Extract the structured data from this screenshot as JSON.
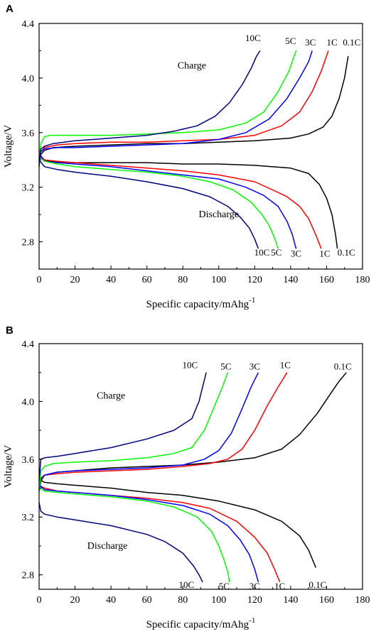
{
  "chart_data": [
    {
      "type": "line",
      "panel_label": "A",
      "xlabel": "Specific capacity/mAhg",
      "xlabel_superscript": "-1",
      "ylabel": "Voltage/V",
      "xlim": [
        0,
        180
      ],
      "ylim": [
        2.6,
        4.4
      ],
      "xticks": [
        0,
        20,
        40,
        60,
        80,
        100,
        120,
        140,
        160,
        180
      ],
      "yticks": [
        2.8,
        3.2,
        3.6,
        4.0,
        4.4
      ],
      "ytick_labels": [
        "2.8",
        "3.2",
        "3.6",
        "4.0",
        "4.4"
      ],
      "grid": false,
      "text_labels": [
        {
          "text": "Charge",
          "x": 85,
          "y": 4.07
        },
        {
          "text": "Discharge",
          "x": 100,
          "y": 2.98
        },
        {
          "text": "10C",
          "x": 119,
          "y": 4.27
        },
        {
          "text": "5C",
          "x": 140,
          "y": 4.25
        },
        {
          "text": "3C",
          "x": 151,
          "y": 4.24
        },
        {
          "text": "1C",
          "x": 163,
          "y": 4.24
        },
        {
          "text": "0.1C",
          "x": 174,
          "y": 4.24
        },
        {
          "text": "10C",
          "x": 124,
          "y": 2.7
        },
        {
          "text": "5C",
          "x": 132,
          "y": 2.7
        },
        {
          "text": "3C",
          "x": 143,
          "y": 2.69
        },
        {
          "text": "1C",
          "x": 159,
          "y": 2.69
        },
        {
          "text": "0.1C",
          "x": 171,
          "y": 2.7
        }
      ],
      "series": [
        {
          "name": "0.1C",
          "color": "#000000",
          "segments": [
            {
              "x": [
                0,
                1,
                3,
                8,
                20,
                40,
                60,
                80,
                100,
                120,
                140,
                150,
                158,
                163,
                167,
                170,
                172
              ],
              "y": [
                3.4,
                3.44,
                3.47,
                3.49,
                3.5,
                3.51,
                3.52,
                3.52,
                3.53,
                3.54,
                3.56,
                3.59,
                3.64,
                3.72,
                3.85,
                4.0,
                4.16
              ]
            },
            {
              "x": [
                0,
                2,
                5,
                20,
                40,
                60,
                80,
                100,
                120,
                140,
                150,
                156,
                160,
                163,
                165,
                166
              ],
              "y": [
                3.46,
                3.4,
                3.39,
                3.38,
                3.38,
                3.38,
                3.37,
                3.37,
                3.36,
                3.34,
                3.3,
                3.22,
                3.12,
                3.0,
                2.85,
                2.75
              ]
            }
          ]
        },
        {
          "name": "1C",
          "color": "#ff0000",
          "segments": [
            {
              "x": [
                0,
                1,
                3,
                10,
                20,
                40,
                60,
                80,
                100,
                120,
                135,
                145,
                152,
                157,
                161
              ],
              "y": [
                3.4,
                3.46,
                3.49,
                3.51,
                3.52,
                3.53,
                3.53,
                3.54,
                3.55,
                3.58,
                3.65,
                3.75,
                3.9,
                4.05,
                4.2
              ]
            },
            {
              "x": [
                0,
                3,
                10,
                20,
                40,
                60,
                80,
                100,
                120,
                130,
                138,
                145,
                150,
                154,
                157
              ],
              "y": [
                3.44,
                3.4,
                3.39,
                3.38,
                3.36,
                3.34,
                3.32,
                3.29,
                3.24,
                3.18,
                3.13,
                3.06,
                2.97,
                2.85,
                2.75
              ]
            }
          ]
        },
        {
          "name": "3C",
          "color": "#0000ff",
          "segments": [
            {
              "x": [
                0,
                1,
                3,
                10,
                20,
                40,
                60,
                80,
                100,
                115,
                128,
                138,
                145,
                150,
                152
              ],
              "y": [
                3.4,
                3.46,
                3.48,
                3.49,
                3.49,
                3.5,
                3.51,
                3.52,
                3.55,
                3.6,
                3.7,
                3.85,
                4.0,
                4.12,
                4.2
              ]
            },
            {
              "x": [
                0,
                3,
                10,
                20,
                40,
                60,
                80,
                100,
                115,
                125,
                133,
                138,
                141,
                143
              ],
              "y": [
                3.44,
                3.39,
                3.38,
                3.37,
                3.35,
                3.32,
                3.29,
                3.26,
                3.2,
                3.14,
                3.06,
                2.95,
                2.85,
                2.75
              ]
            }
          ]
        },
        {
          "name": "5C",
          "color": "#00ff00",
          "segments": [
            {
              "x": [
                0,
                1,
                3,
                6,
                10,
                20,
                40,
                60,
                80,
                100,
                115,
                125,
                133,
                139,
                143
              ],
              "y": [
                3.4,
                3.52,
                3.57,
                3.58,
                3.58,
                3.58,
                3.58,
                3.59,
                3.6,
                3.62,
                3.67,
                3.75,
                3.9,
                4.05,
                4.2
              ]
            },
            {
              "x": [
                0,
                3,
                10,
                20,
                40,
                60,
                80,
                95,
                108,
                118,
                124,
                128,
                131,
                133
              ],
              "y": [
                3.42,
                3.39,
                3.37,
                3.35,
                3.33,
                3.31,
                3.28,
                3.24,
                3.18,
                3.09,
                3.0,
                2.92,
                2.83,
                2.75
              ]
            }
          ]
        },
        {
          "name": "10C",
          "color": "#000080",
          "segments": [
            {
              "x": [
                0,
                1,
                3,
                8,
                20,
                40,
                60,
                75,
                88,
                98,
                106,
                113,
                118,
                121,
                123
              ],
              "y": [
                3.35,
                3.48,
                3.5,
                3.52,
                3.54,
                3.56,
                3.58,
                3.61,
                3.65,
                3.72,
                3.82,
                3.95,
                4.07,
                4.16,
                4.2
              ]
            },
            {
              "x": [
                0,
                3,
                10,
                20,
                40,
                60,
                80,
                95,
                105,
                112,
                117,
                120,
                122
              ],
              "y": [
                3.4,
                3.35,
                3.33,
                3.31,
                3.28,
                3.24,
                3.19,
                3.13,
                3.06,
                2.98,
                2.9,
                2.82,
                2.75
              ]
            }
          ]
        }
      ]
    },
    {
      "type": "line",
      "panel_label": "B",
      "xlabel": "Specific capacity/mAhg",
      "xlabel_superscript": "-1",
      "ylabel": "Voltage/V",
      "xlim": [
        0,
        180
      ],
      "ylim": [
        2.7,
        4.4
      ],
      "xticks": [
        0,
        20,
        40,
        60,
        80,
        100,
        120,
        140,
        160,
        180
      ],
      "yticks": [
        2.8,
        3.2,
        3.6,
        4.0,
        4.4
      ],
      "ytick_labels": [
        "2.8",
        "3.2",
        "3.6",
        "4.0",
        "4.4"
      ],
      "grid": false,
      "text_labels": [
        {
          "text": "Charge",
          "x": 40,
          "y": 4.02
        },
        {
          "text": "Discharge",
          "x": 38,
          "y": 2.98
        },
        {
          "text": "10C",
          "x": 84,
          "y": 4.23
        },
        {
          "text": "5C",
          "x": 104,
          "y": 4.22
        },
        {
          "text": "3C",
          "x": 120,
          "y": 4.22
        },
        {
          "text": "1C",
          "x": 137,
          "y": 4.23
        },
        {
          "text": "0.1C",
          "x": 169,
          "y": 4.22
        },
        {
          "text": "10C",
          "x": 82,
          "y": 2.71
        },
        {
          "text": "5C",
          "x": 103,
          "y": 2.7
        },
        {
          "text": "3C",
          "x": 120,
          "y": 2.7
        },
        {
          "text": "1C",
          "x": 134,
          "y": 2.7
        },
        {
          "text": "0.1C",
          "x": 155,
          "y": 2.71
        }
      ],
      "series": [
        {
          "name": "0.1C",
          "color": "#000000",
          "segments": [
            {
              "x": [
                0,
                1,
                3,
                10,
                20,
                40,
                60,
                80,
                100,
                120,
                135,
                145,
                155,
                162,
                167,
                171
              ],
              "y": [
                3.38,
                3.45,
                3.49,
                3.51,
                3.52,
                3.54,
                3.55,
                3.56,
                3.58,
                3.61,
                3.67,
                3.77,
                3.92,
                4.05,
                4.14,
                4.2
              ]
            },
            {
              "x": [
                0,
                3,
                10,
                20,
                40,
                60,
                80,
                100,
                120,
                135,
                145,
                150,
                154
              ],
              "y": [
                3.46,
                3.44,
                3.43,
                3.42,
                3.4,
                3.37,
                3.35,
                3.31,
                3.25,
                3.17,
                3.07,
                2.97,
                2.85
              ]
            }
          ]
        },
        {
          "name": "1C",
          "color": "#ff0000",
          "segments": [
            {
              "x": [
                0,
                1,
                3,
                10,
                20,
                40,
                60,
                80,
                95,
                105,
                113,
                120,
                127,
                133,
                138
              ],
              "y": [
                3.38,
                3.47,
                3.49,
                3.5,
                3.51,
                3.52,
                3.53,
                3.55,
                3.57,
                3.6,
                3.67,
                3.8,
                3.97,
                4.1,
                4.2
              ]
            },
            {
              "x": [
                0,
                3,
                10,
                20,
                40,
                60,
                80,
                95,
                110,
                120,
                127,
                131,
                134
              ],
              "y": [
                3.42,
                3.4,
                3.38,
                3.37,
                3.35,
                3.33,
                3.3,
                3.26,
                3.17,
                3.06,
                2.95,
                2.84,
                2.75
              ]
            }
          ]
        },
        {
          "name": "3C",
          "color": "#0000ff",
          "segments": [
            {
              "x": [
                0,
                1,
                3,
                10,
                20,
                40,
                60,
                80,
                92,
                100,
                107,
                113,
                118,
                122
              ],
              "y": [
                3.38,
                3.46,
                3.49,
                3.51,
                3.52,
                3.53,
                3.54,
                3.56,
                3.6,
                3.66,
                3.78,
                3.95,
                4.1,
                4.2
              ]
            },
            {
              "x": [
                0,
                3,
                10,
                20,
                40,
                60,
                80,
                95,
                105,
                112,
                117,
                120,
                122
              ],
              "y": [
                3.42,
                3.39,
                3.38,
                3.37,
                3.35,
                3.32,
                3.28,
                3.22,
                3.14,
                3.04,
                2.94,
                2.84,
                2.75
              ]
            }
          ]
        },
        {
          "name": "5C",
          "color": "#00ff00",
          "segments": [
            {
              "x": [
                0,
                1,
                3,
                8,
                20,
                40,
                60,
                75,
                85,
                92,
                98,
                102,
                105
              ],
              "y": [
                3.38,
                3.52,
                3.55,
                3.57,
                3.58,
                3.59,
                3.61,
                3.64,
                3.68,
                3.8,
                3.98,
                4.1,
                4.2
              ]
            },
            {
              "x": [
                0,
                3,
                10,
                20,
                40,
                60,
                75,
                88,
                96,
                100,
                103,
                105,
                106
              ],
              "y": [
                3.4,
                3.38,
                3.37,
                3.36,
                3.34,
                3.31,
                3.27,
                3.2,
                3.1,
                3.0,
                2.9,
                2.82,
                2.75
              ]
            }
          ]
        },
        {
          "name": "10C",
          "color": "#000080",
          "segments": [
            {
              "x": [
                0,
                1,
                3,
                10,
                20,
                40,
                60,
                75,
                85,
                89,
                91,
                92,
                93
              ],
              "y": [
                3.45,
                3.6,
                3.61,
                3.62,
                3.64,
                3.68,
                3.74,
                3.8,
                3.88,
                4.0,
                4.1,
                4.15,
                4.2
              ]
            },
            {
              "x": [
                0,
                1,
                3,
                10,
                20,
                40,
                60,
                70,
                80,
                86,
                89,
                91
              ],
              "y": [
                3.3,
                3.24,
                3.22,
                3.2,
                3.18,
                3.14,
                3.08,
                3.03,
                2.95,
                2.86,
                2.8,
                2.75
              ]
            }
          ]
        }
      ]
    }
  ]
}
